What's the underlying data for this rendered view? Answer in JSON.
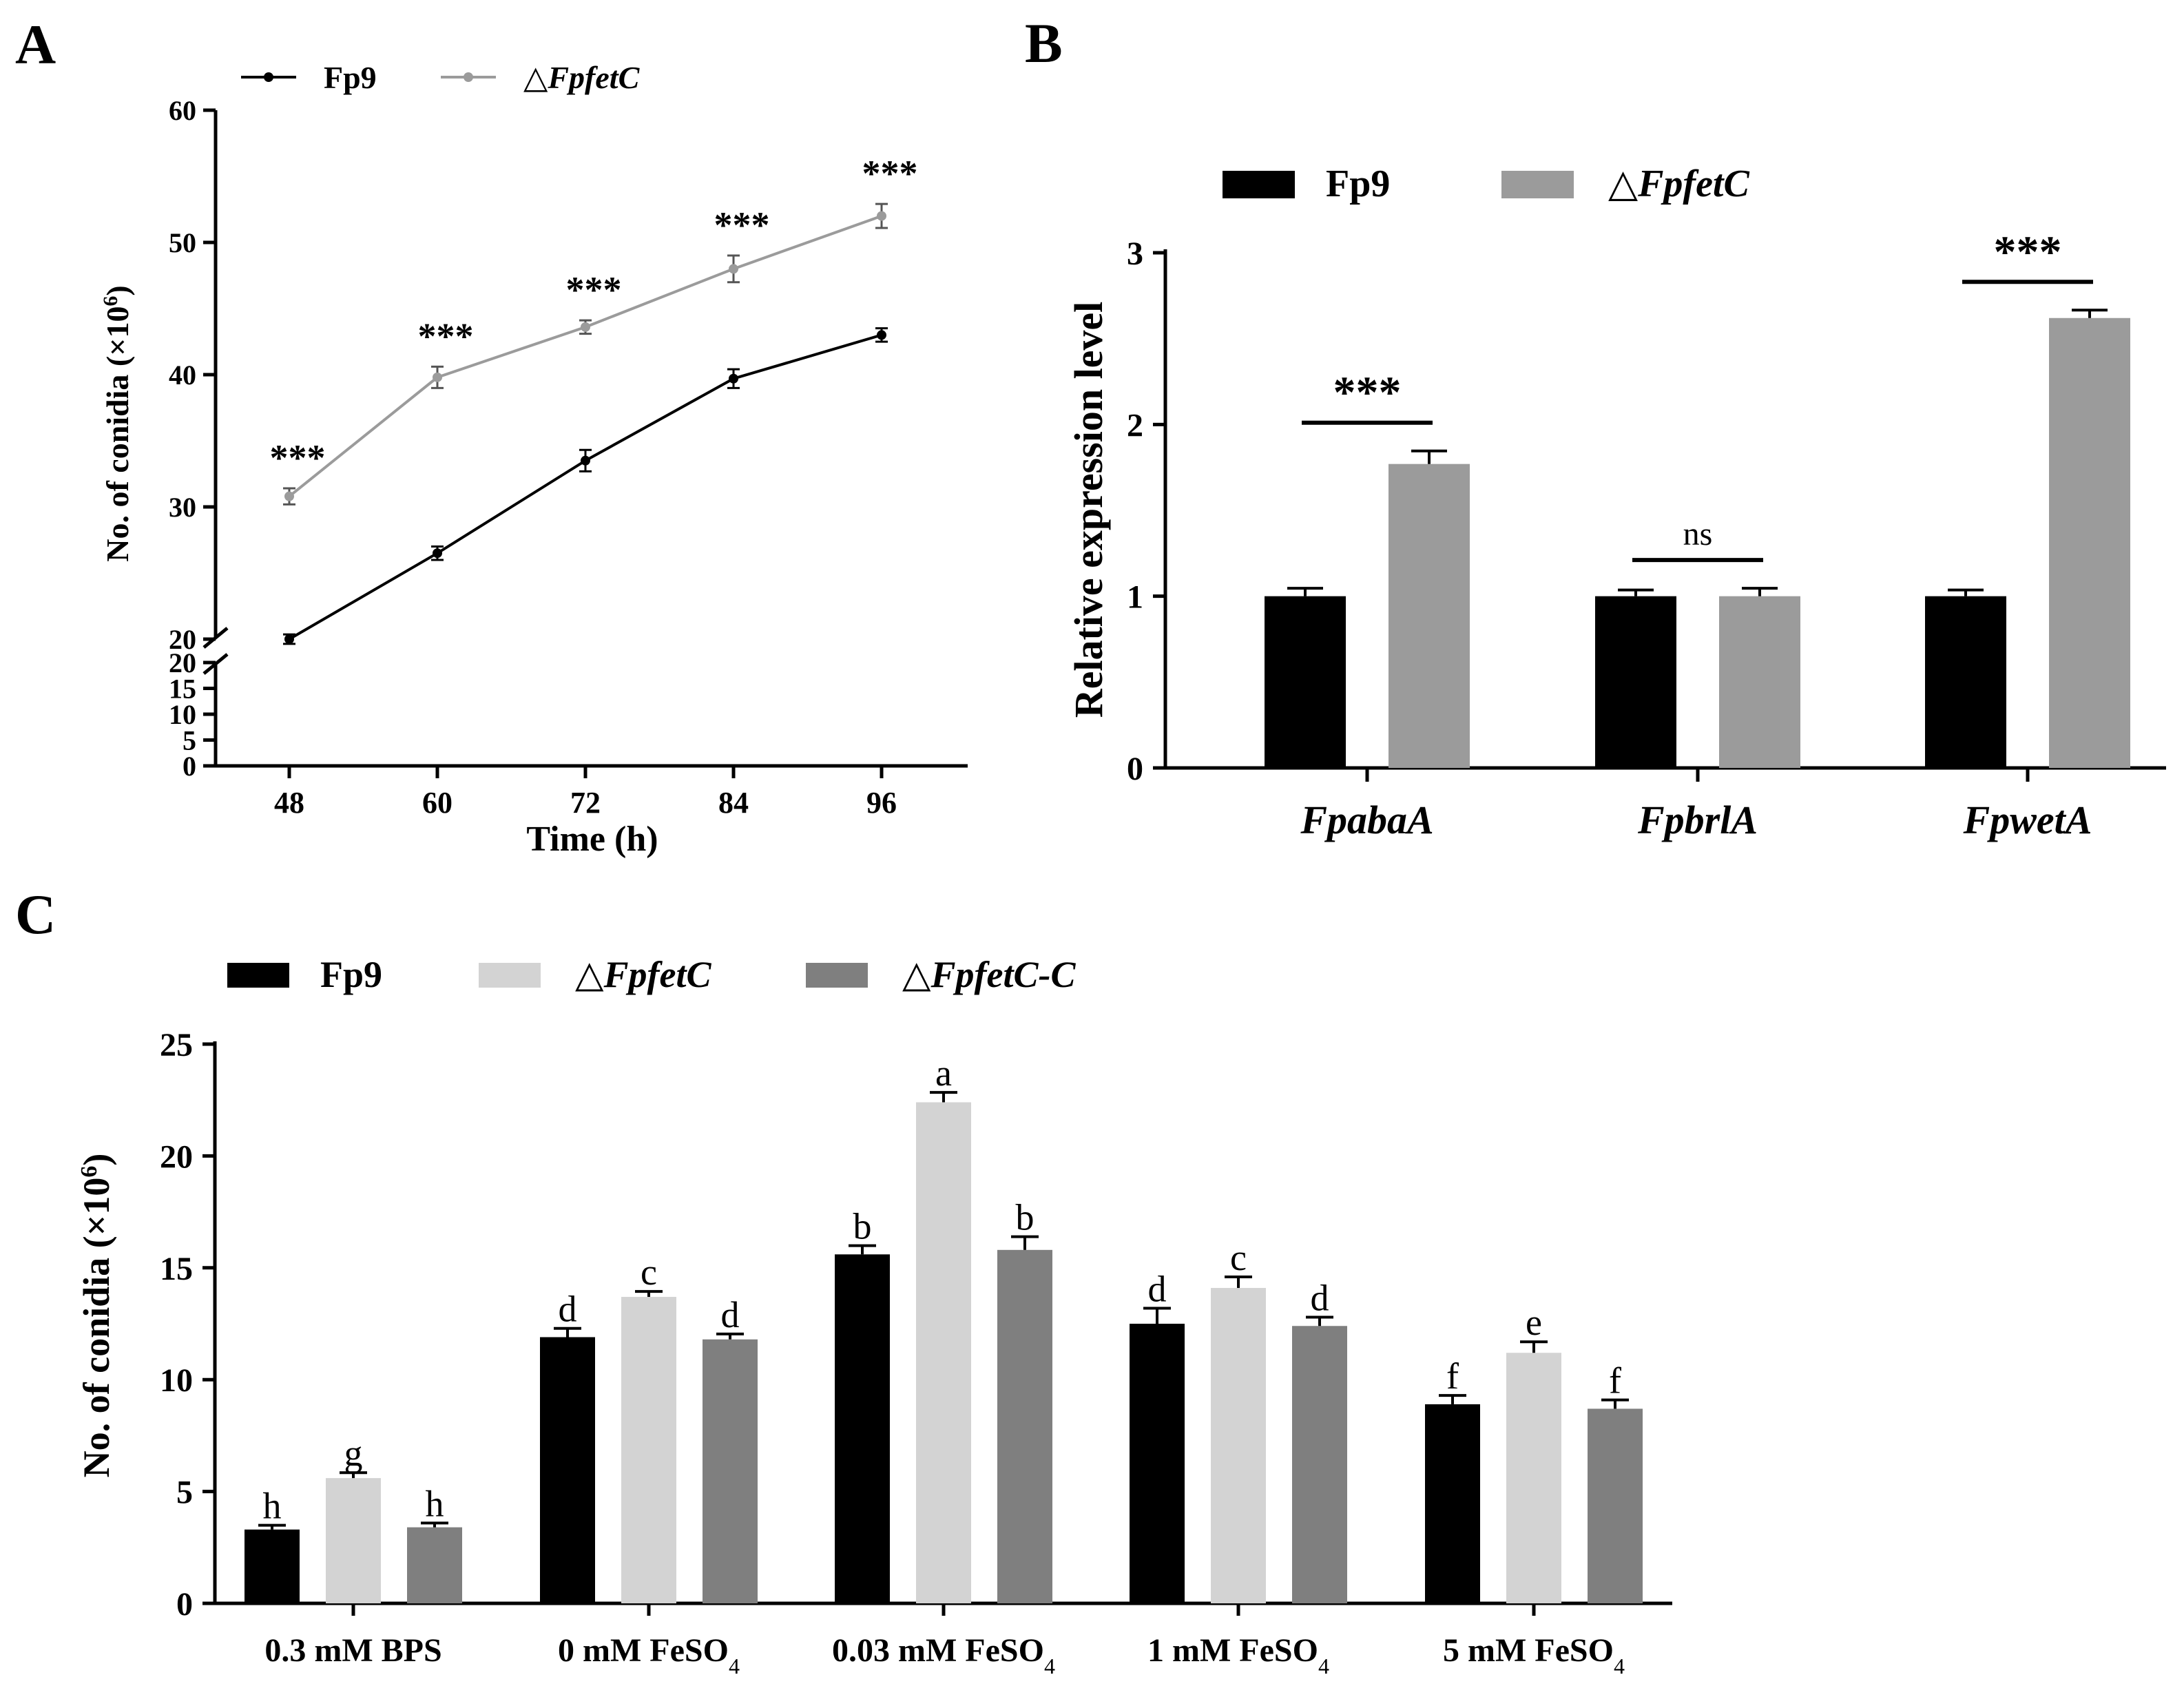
{
  "colors": {
    "black": "#000000",
    "grey": "#9b9b9b",
    "lightgrey": "#d3d3d3",
    "darkgrey": "#7f7f7f"
  },
  "panel_labels": [
    "A",
    "B",
    "C"
  ],
  "chart_data": [
    {
      "panel": "A",
      "type": "line",
      "x": [
        48,
        60,
        72,
        84,
        96
      ],
      "xlabel": "Time (h)",
      "ylabel": "No. of conidia (×10⁶)",
      "y_upper_ticks": [
        "20",
        "30",
        "40",
        "50",
        "60"
      ],
      "y_lower_ticks": [
        "0",
        "5",
        "10",
        "15",
        "20"
      ],
      "ylim_upper": [
        20,
        60
      ],
      "ylim_lower": [
        0,
        20
      ],
      "legend": [
        "Fp9",
        "△FpfetC"
      ],
      "legend_position": "top-left",
      "series": [
        {
          "name": "Fp9",
          "values": [
            20,
            26.5,
            33.5,
            39.7,
            43
          ],
          "errors": [
            0.15,
            0.3,
            0.6,
            0.5,
            0.3
          ],
          "color": "#000000"
        },
        {
          "name": "△FpfetC",
          "values": [
            30.8,
            39.8,
            43.6,
            48,
            52
          ],
          "errors": [
            0.4,
            0.6,
            0.3,
            0.8,
            0.7
          ],
          "color": "#9b9b9b"
        }
      ],
      "annotations": [
        "***",
        "***",
        "***",
        "***",
        "***"
      ]
    },
    {
      "panel": "B",
      "type": "bar",
      "categories": [
        "FpabaA",
        "FpbrlA",
        "FpwetA"
      ],
      "ylabel": "Relative expression level",
      "y_ticks": [
        "0",
        "1",
        "2",
        "3"
      ],
      "ylim": [
        0,
        3
      ],
      "legend": [
        "Fp9",
        "△FpfetC"
      ],
      "legend_position": "top",
      "series": [
        {
          "name": "Fp9",
          "values": [
            1,
            1,
            1
          ],
          "errors": [
            0.03,
            0.02,
            0.02
          ],
          "color": "#000000"
        },
        {
          "name": "△FpfetC",
          "values": [
            1.77,
            1.0,
            2.62
          ],
          "errors": [
            0.06,
            0.03,
            0.03
          ],
          "color": "#9b9b9b"
        }
      ],
      "annotations": [
        "***",
        "ns",
        "***"
      ]
    },
    {
      "panel": "C",
      "type": "bar",
      "categories": [
        "0.3 mM BPS",
        "0 mM FeSO",
        "0.03 mM FeSO",
        "1 mM FeSO",
        "5 mM FeSO"
      ],
      "category_subscripts": [
        "",
        "4",
        "4",
        "4",
        "4"
      ],
      "ylabel": "No. of conidia (×10⁶)",
      "y_ticks": [
        "0",
        "5",
        "10",
        "15",
        "20",
        "25"
      ],
      "ylim": [
        0,
        25
      ],
      "legend": [
        "Fp9",
        "△FpfetC",
        "△FpfetC-C"
      ],
      "legend_position": "top",
      "series": [
        {
          "name": "Fp9",
          "values": [
            3.3,
            11.9,
            15.6,
            12.5,
            8.9
          ],
          "errors": [
            0.1,
            0.3,
            0.3,
            0.6,
            0.3
          ],
          "letters": [
            "h",
            "d",
            "b",
            "d",
            "f"
          ],
          "color": "#000000"
        },
        {
          "name": "△FpfetC",
          "values": [
            5.6,
            13.7,
            22.4,
            14.1,
            11.2
          ],
          "errors": [
            0.15,
            0.15,
            0.35,
            0.4,
            0.4
          ],
          "letters": [
            "g",
            "c",
            "a",
            "c",
            "e"
          ],
          "color": "#d3d3d3"
        },
        {
          "name": "△FpfetC-C",
          "values": [
            3.4,
            11.8,
            15.8,
            12.4,
            8.7
          ],
          "errors": [
            0.1,
            0.15,
            0.5,
            0.3,
            0.3
          ],
          "letters": [
            "h",
            "d",
            "b",
            "d",
            "f"
          ],
          "color": "#7f7f7f"
        }
      ]
    }
  ]
}
